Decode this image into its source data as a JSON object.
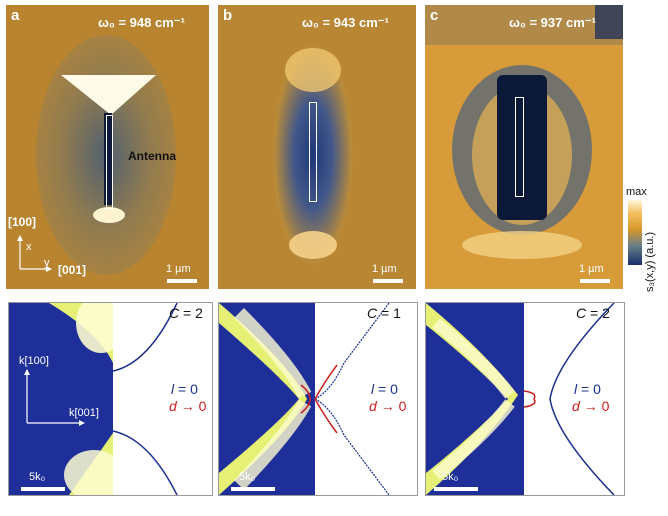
{
  "panels": [
    {
      "letter": "a",
      "freq": "ω₀ = 948 cm⁻¹",
      "scale": "1 µm"
    },
    {
      "letter": "b",
      "freq": "ω₀ = 943 cm⁻¹",
      "scale": "1 µm"
    },
    {
      "letter": "c",
      "freq": "ω₀ = 937 cm⁻¹",
      "scale": "1 µm"
    }
  ],
  "antenna_label": "Antenna",
  "crystal_axes": {
    "x_dir": "[100]",
    "y_dir": "[001]",
    "x": "x",
    "y": "y"
  },
  "colorbar": {
    "max": "max",
    "label": "s₃(x,y) (a.u.)"
  },
  "bottom": [
    {
      "c_sym": "C",
      "c_val": "= 2",
      "l_sym": "l",
      "l_val": "= 0",
      "d_sym": "d",
      "d_val": "→ 0",
      "scale": "5k₀"
    },
    {
      "c_sym": "C",
      "c_val": "= 1",
      "l_sym": "l",
      "l_val": "= 0",
      "d_sym": "d",
      "d_val": "→ 0",
      "scale": "5k₀"
    },
    {
      "c_sym": "C",
      "c_val": "= 2",
      "l_sym": "l",
      "l_val": "= 0",
      "d_sym": "d",
      "d_val": "→ 0",
      "scale": "5k₀"
    }
  ],
  "k_axes": {
    "k100": "k[100]",
    "k001": "k[001]"
  }
}
